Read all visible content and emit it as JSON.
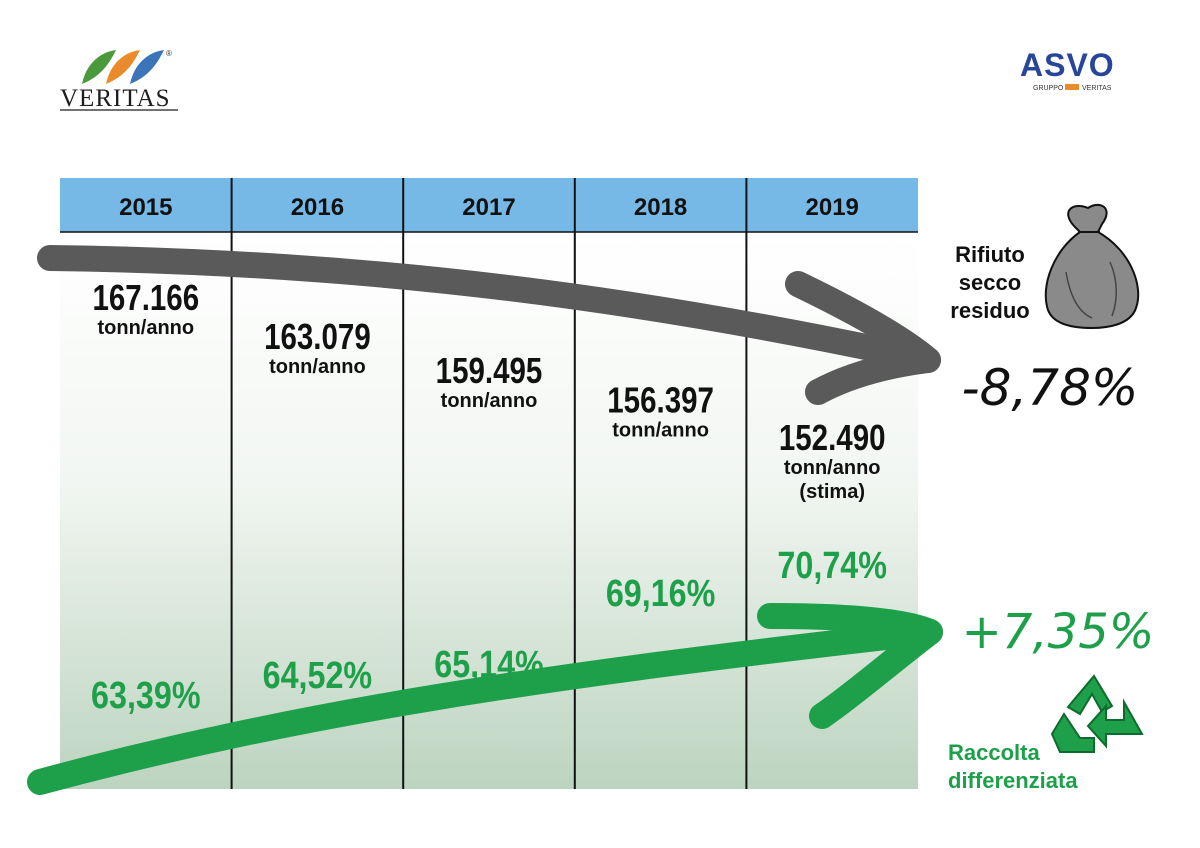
{
  "logos": {
    "left": {
      "text": "VERITAS",
      "registered": "®"
    },
    "right": {
      "text": "ASVO",
      "subtitle": "GRUPPO",
      "subtitle2": "VERITAS"
    }
  },
  "colors": {
    "header": "#76b9e6",
    "grey_arrow": "#5a5a5a",
    "green": "#1ea04a",
    "table_top": "#ffffff",
    "table_bottom": "#bcd4bf",
    "divider": "#111111",
    "text": "#111111"
  },
  "chart_data": {
    "type": "table",
    "title": "",
    "years": [
      "2015",
      "2016",
      "2017",
      "2018",
      "2019"
    ],
    "series": [
      {
        "name": "Rifiuto secco residuo",
        "values": [
          167166,
          163079,
          159495,
          156397,
          152490
        ],
        "labels": [
          "167.166",
          "163.079",
          "159.495",
          "156.397",
          "152.490"
        ],
        "unit": "tonn/anno",
        "notes": [
          "",
          "",
          "",
          "",
          "(stima)"
        ],
        "trend": "decreasing",
        "change": "-8,78%"
      },
      {
        "name": "Raccolta differenziata",
        "values": [
          63.39,
          64.52,
          65.14,
          69.16,
          70.74
        ],
        "labels": [
          "63,39%",
          "64,52%",
          "65,14%",
          "69,16%",
          "70,74%"
        ],
        "unit": "%",
        "trend": "increasing",
        "change": "+7,35%"
      }
    ],
    "legend": {
      "residual": [
        "Rifiuto",
        "secco",
        "residuo"
      ],
      "recycled": [
        "Raccolta",
        "differenziata"
      ]
    }
  }
}
